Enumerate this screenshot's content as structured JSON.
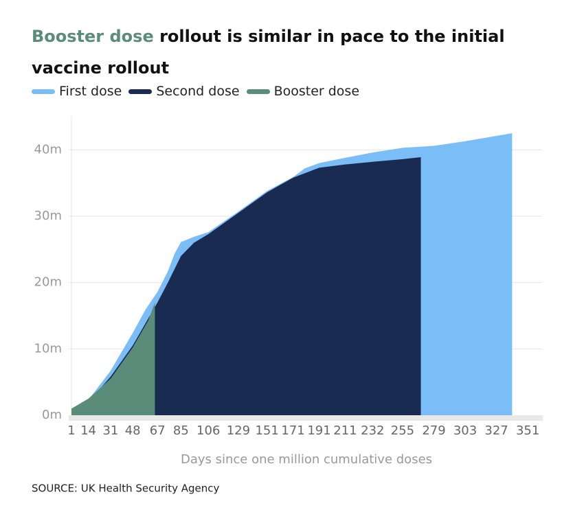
{
  "chart_data": {
    "type": "area",
    "title_highlight": "Booster dose",
    "title": "rollout is similar in pace to the initial vaccine rollout",
    "title_highlight_color": "#5b8c7a",
    "x_label": "Days since one million cumulative doses",
    "source": "SOURCE: UK Health Security Agency",
    "xlim": [
      1,
      362
    ],
    "xticks": [
      1,
      14,
      31,
      48,
      67,
      85,
      106,
      129,
      151,
      171,
      191,
      211,
      232,
      255,
      279,
      303,
      327,
      351
    ],
    "ylim": [
      0,
      45
    ],
    "yticks": [
      {
        "value": 0,
        "label": "0m"
      },
      {
        "value": 10,
        "label": "10m"
      },
      {
        "value": 20,
        "label": "20m"
      },
      {
        "value": 30,
        "label": "30m"
      },
      {
        "value": 40,
        "label": "40m"
      }
    ],
    "grid": true,
    "series": [
      {
        "name": "First dose",
        "color": "#7bbdf7",
        "x": [
          1,
          14,
          31,
          48,
          58,
          67,
          75,
          80,
          85,
          95,
          106,
          129,
          151,
          171,
          180,
          191,
          211,
          232,
          255,
          279,
          303,
          327,
          339
        ],
        "values": [
          1.0,
          2.3,
          6.7,
          12.4,
          16.0,
          18.6,
          21.7,
          24.3,
          26.1,
          26.9,
          27.6,
          30.7,
          33.8,
          35.9,
          37.2,
          38.0,
          38.8,
          39.6,
          40.3,
          40.6,
          41.3,
          42.1,
          42.5
        ]
      },
      {
        "name": "Second dose",
        "color": "#1a2b52",
        "x": [
          1,
          14,
          31,
          48,
          67,
          75,
          85,
          95,
          106,
          129,
          151,
          171,
          191,
          211,
          232,
          255,
          269
        ],
        "values": [
          0.8,
          2.0,
          5.8,
          10.5,
          17.0,
          20.0,
          24.0,
          26.0,
          27.3,
          30.5,
          33.6,
          35.8,
          37.3,
          37.8,
          38.2,
          38.6,
          38.9
        ]
      },
      {
        "name": "Booster dose",
        "color": "#5b8c7a",
        "x": [
          1,
          14,
          31,
          48,
          60,
          65
        ],
        "values": [
          1.0,
          2.5,
          5.5,
          10.2,
          14.3,
          17.0
        ]
      }
    ]
  }
}
